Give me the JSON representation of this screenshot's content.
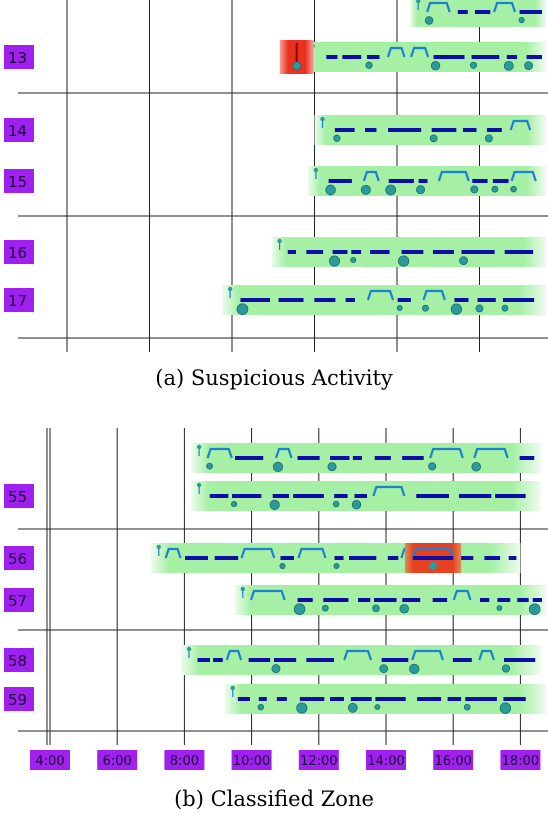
{
  "colors": {
    "label_bg": "#a020f0",
    "band_green": "#9cf09c",
    "band_light": "#d9f7d9",
    "stay": "#0d0da8",
    "transit": "#1f7fd0",
    "dot": "#2a9a9a",
    "alert": "#e8311f",
    "grid": "#222222"
  },
  "panels": [
    {
      "caption": "(a)  Suspicious Activity",
      "ids": [
        "13",
        "14",
        "15",
        "16",
        "17"
      ],
      "alert_id": "13",
      "alert_hour": 10.4,
      "x_range": [
        3.0,
        19.7
      ],
      "vlines_hours": [
        3.5,
        6.0,
        8.5,
        11.0,
        13.5,
        16.0
      ],
      "hlines": [
        "after 13",
        "after 15",
        "after 17"
      ],
      "rows": [
        {
          "id": "",
          "band": [
            13.9,
            19.7
          ]
        },
        {
          "id": "13",
          "band": [
            10.7,
            19.7
          ]
        },
        {
          "id": "14",
          "band": [
            11.0,
            19.7
          ]
        },
        {
          "id": "15",
          "band": [
            10.8,
            19.7
          ]
        },
        {
          "id": "16",
          "band": [
            9.7,
            19.7
          ]
        },
        {
          "id": "17",
          "band": [
            8.2,
            19.7
          ]
        }
      ]
    },
    {
      "caption": "(b)  Classified Zone",
      "ids": [
        "55",
        "56",
        "57",
        "58",
        "59"
      ],
      "alert_id": "56",
      "alert_hours": [
        14.8,
        16.0
      ],
      "ticks": [
        "4:00",
        "6:00",
        "8:00",
        "10:00",
        "12:00",
        "14:00",
        "16:00",
        "18:00"
      ],
      "tick_hours": [
        4,
        6,
        8,
        10,
        12,
        14,
        16,
        18
      ],
      "x_range": [
        3.0,
        19.0
      ],
      "rows": [
        {
          "id": "",
          "band": [
            8.2,
            18.6
          ]
        },
        {
          "id": "55",
          "band": [
            8.2,
            18.6
          ]
        },
        {
          "id": "56",
          "band": [
            7.0,
            18.0
          ]
        },
        {
          "id": "57",
          "band": [
            9.5,
            19.0
          ]
        },
        {
          "id": "58",
          "band": [
            7.9,
            18.6
          ]
        },
        {
          "id": "59",
          "band": [
            9.2,
            19.0
          ]
        }
      ]
    }
  ]
}
